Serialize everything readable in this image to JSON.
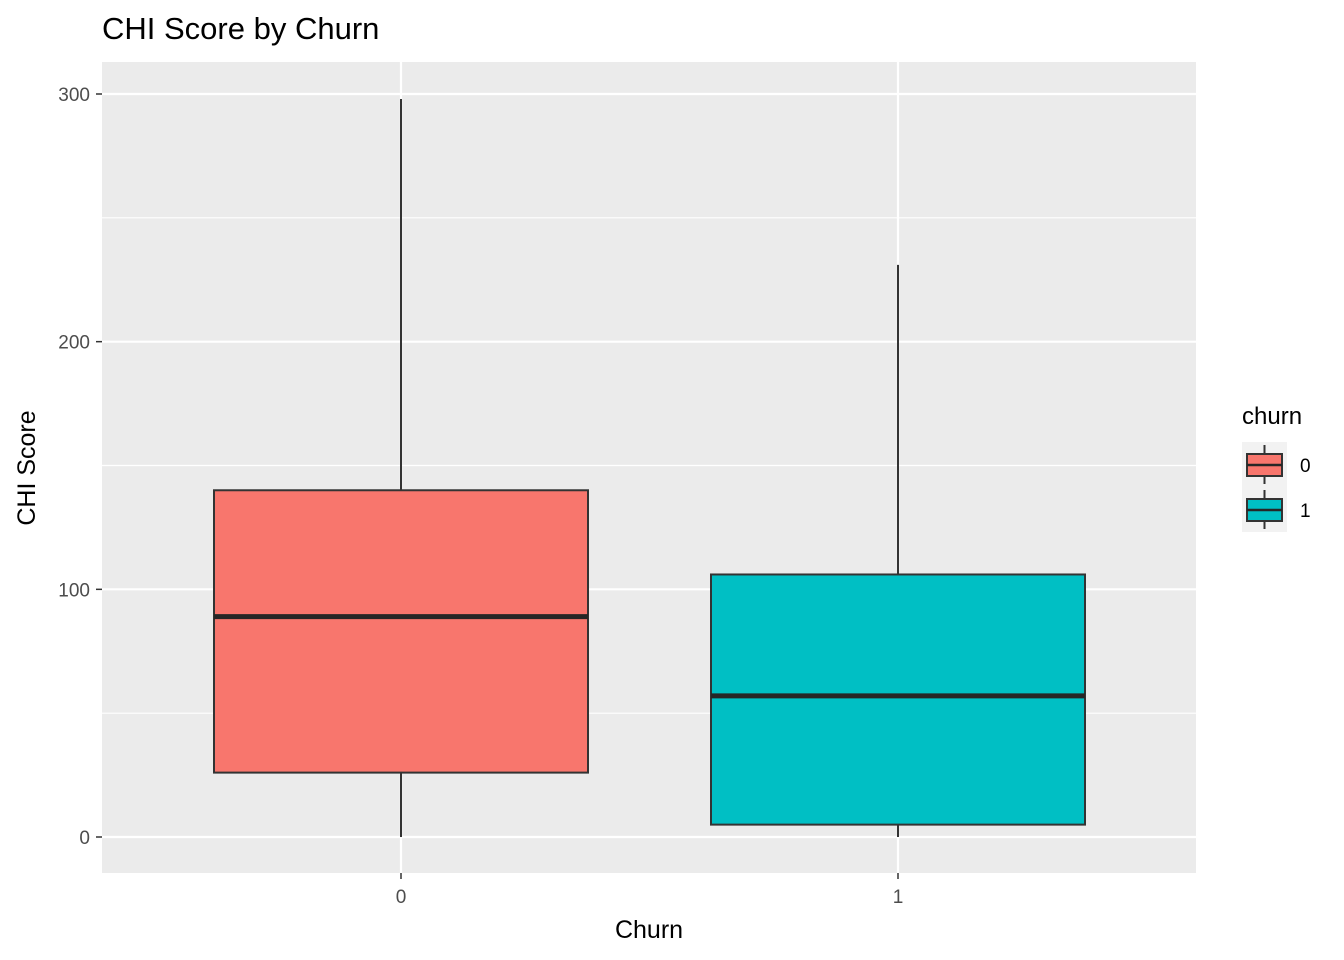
{
  "chart_data": {
    "type": "boxplot",
    "title": "CHI Score by Churn",
    "xlabel": "Churn",
    "ylabel": "CHI Score",
    "ylim": [
      -15,
      313
    ],
    "yticks": [
      0,
      100,
      200,
      300
    ],
    "grid": true,
    "legend": {
      "title": "churn",
      "placement": "right",
      "entries": [
        {
          "label": "0",
          "color": "#F8766D"
        },
        {
          "label": "1",
          "color": "#00BFC4"
        }
      ]
    },
    "categories": [
      "0",
      "1"
    ],
    "series": [
      {
        "category": "0",
        "min": 0,
        "q1": 26,
        "median": 89,
        "q3": 140,
        "max": 298,
        "color": "#F8766D"
      },
      {
        "category": "1",
        "min": 0,
        "q1": 5,
        "median": 57,
        "q3": 106,
        "max": 231,
        "color": "#00BFC4"
      }
    ]
  }
}
